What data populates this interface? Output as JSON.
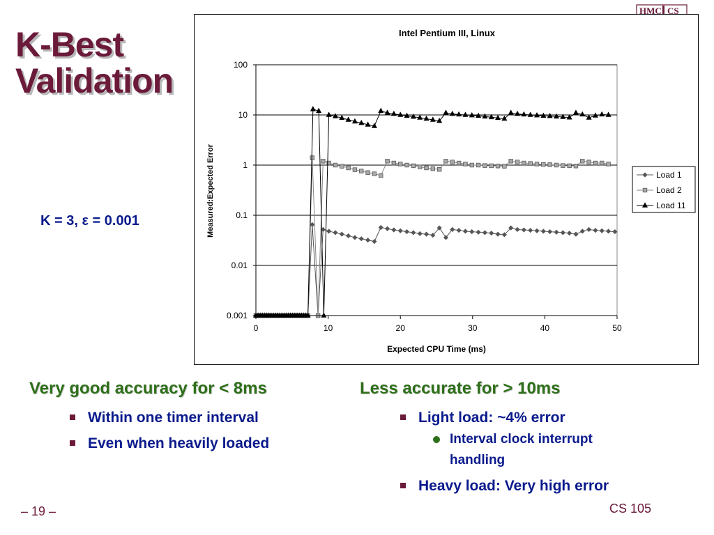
{
  "logo": {
    "text": "HMC CS"
  },
  "title": {
    "line1": "K-Best",
    "line2": "Validation"
  },
  "param": {
    "text": "K = 3, ε = 0.001"
  },
  "chart_data": {
    "type": "line",
    "title": "Intel Pentium III, Linux",
    "xlabel": "Expected CPU Time (ms)",
    "ylabel": "Measured:Expected Error",
    "xlim": [
      0,
      50
    ],
    "ylim": [
      0.001,
      100
    ],
    "yscale": "log",
    "xticks": [
      "0",
      "10",
      "20",
      "30",
      "40",
      "50"
    ],
    "yticks": [
      "0.001",
      "0.01",
      "0.1",
      "1",
      "10",
      "100"
    ],
    "grid": true,
    "legend_position": "right",
    "series": [
      {
        "name": "Load 1",
        "marker": "diamond",
        "x": [
          0,
          0.3,
          0.6,
          0.9,
          1.2,
          1.5,
          1.8,
          2.1,
          2.4,
          2.7,
          3.0,
          3.3,
          3.6,
          3.9,
          4.2,
          4.5,
          4.8,
          5.1,
          5.4,
          5.7,
          6.0,
          6.3,
          6.6,
          6.9,
          7.2,
          7.8,
          8.6,
          9.3,
          10.1,
          11.0,
          11.9,
          12.8,
          13.7,
          14.6,
          15.5,
          16.4,
          17.3,
          18.2,
          19.1,
          20.0,
          20.9,
          21.8,
          22.7,
          23.6,
          24.5,
          25.4,
          26.3,
          27.2,
          28.1,
          29.0,
          29.9,
          30.8,
          31.7,
          32.6,
          33.5,
          34.4,
          35.3,
          36.2,
          37.1,
          38.0,
          38.9,
          39.8,
          40.7,
          41.6,
          42.5,
          43.4,
          44.3,
          45.2,
          46.1,
          47.0,
          47.9,
          48.8,
          49.7
        ],
        "y": [
          0.001,
          0.001,
          0.001,
          0.001,
          0.001,
          0.001,
          0.001,
          0.001,
          0.001,
          0.001,
          0.001,
          0.001,
          0.001,
          0.001,
          0.001,
          0.001,
          0.001,
          0.001,
          0.001,
          0.001,
          0.001,
          0.001,
          0.001,
          0.001,
          0.001,
          0.065,
          0.001,
          0.052,
          0.048,
          0.045,
          0.042,
          0.039,
          0.036,
          0.034,
          0.032,
          0.03,
          0.057,
          0.054,
          0.051,
          0.049,
          0.047,
          0.045,
          0.043,
          0.042,
          0.04,
          0.056,
          0.036,
          0.052,
          0.05,
          0.048,
          0.047,
          0.046,
          0.045,
          0.044,
          0.042,
          0.041,
          0.056,
          0.052,
          0.051,
          0.05,
          0.049,
          0.048,
          0.047,
          0.046,
          0.045,
          0.044,
          0.042,
          0.048,
          0.052,
          0.05,
          0.049,
          0.048,
          0.047
        ]
      },
      {
        "name": "Load 2",
        "marker": "square",
        "x": [
          0,
          0.3,
          0.6,
          0.9,
          1.2,
          1.5,
          1.8,
          2.1,
          2.4,
          2.7,
          3.0,
          3.3,
          3.6,
          3.9,
          4.2,
          4.5,
          4.8,
          5.1,
          5.4,
          5.7,
          6.0,
          6.3,
          6.6,
          6.9,
          7.2,
          7.8,
          8.6,
          9.3,
          10.1,
          11.0,
          11.9,
          12.8,
          13.7,
          14.6,
          15.5,
          16.4,
          17.3,
          18.2,
          19.1,
          20.0,
          20.9,
          21.8,
          22.7,
          23.6,
          24.5,
          25.4,
          26.3,
          27.2,
          28.1,
          29.0,
          29.9,
          30.8,
          31.7,
          32.6,
          33.5,
          34.4,
          35.3,
          36.2,
          37.1,
          38.0,
          38.9,
          39.8,
          40.7,
          41.6,
          42.5,
          43.4,
          44.3,
          45.2,
          46.1,
          47.0,
          47.9,
          48.8
        ],
        "y": [
          0.001,
          0.001,
          0.001,
          0.001,
          0.001,
          0.001,
          0.001,
          0.001,
          0.001,
          0.001,
          0.001,
          0.001,
          0.001,
          0.001,
          0.001,
          0.001,
          0.001,
          0.001,
          0.001,
          0.001,
          0.001,
          0.001,
          0.001,
          0.001,
          0.001,
          1.4,
          0.001,
          1.2,
          1.1,
          1.0,
          0.95,
          0.88,
          0.81,
          0.76,
          0.71,
          0.67,
          0.62,
          1.2,
          1.1,
          1.05,
          1.0,
          0.97,
          0.92,
          0.88,
          0.85,
          0.82,
          1.2,
          1.15,
          1.1,
          1.05,
          1.0,
          1.0,
          0.98,
          0.97,
          0.96,
          0.95,
          1.2,
          1.15,
          1.1,
          1.08,
          1.05,
          1.03,
          1.02,
          1.0,
          0.98,
          0.97,
          0.96,
          1.2,
          1.15,
          1.1,
          1.1,
          1.05
        ]
      },
      {
        "name": "Load 11",
        "marker": "triangle",
        "x": [
          0,
          0.3,
          0.6,
          0.9,
          1.2,
          1.5,
          1.8,
          2.1,
          2.4,
          2.7,
          3.0,
          3.3,
          3.6,
          3.9,
          4.2,
          4.5,
          4.8,
          5.1,
          5.4,
          5.7,
          6.0,
          6.3,
          6.6,
          6.9,
          7.2,
          7.9,
          8.7,
          9.4,
          10.1,
          11.0,
          11.9,
          12.8,
          13.7,
          14.6,
          15.5,
          16.4,
          17.3,
          18.2,
          19.1,
          20.0,
          20.9,
          21.8,
          22.7,
          23.6,
          24.5,
          25.4,
          26.3,
          27.2,
          28.1,
          29.0,
          29.9,
          30.8,
          31.7,
          32.6,
          33.5,
          34.4,
          35.3,
          36.2,
          37.1,
          38.0,
          38.9,
          39.8,
          40.7,
          41.6,
          42.5,
          43.4,
          44.3,
          45.2,
          46.1,
          47.0,
          47.9,
          48.8
        ],
        "y": [
          0.001,
          0.001,
          0.001,
          0.001,
          0.001,
          0.001,
          0.001,
          0.001,
          0.001,
          0.001,
          0.001,
          0.001,
          0.001,
          0.001,
          0.001,
          0.001,
          0.001,
          0.001,
          0.001,
          0.001,
          0.001,
          0.001,
          0.001,
          0.001,
          0.001,
          13,
          12,
          0.001,
          10,
          9.4,
          8.7,
          8.0,
          7.4,
          6.9,
          6.4,
          6.0,
          12,
          11,
          10.5,
          10,
          9.6,
          9.2,
          8.8,
          8.4,
          8.0,
          7.6,
          11,
          10.5,
          10.2,
          10,
          9.8,
          9.6,
          9.3,
          9.0,
          8.7,
          8.4,
          11,
          10.5,
          10.2,
          10,
          9.8,
          9.6,
          9.5,
          9.3,
          9.1,
          8.9,
          11,
          10.2,
          8.8,
          9.7,
          10.2,
          10
        ]
      }
    ]
  },
  "left_col": {
    "heading": "Very good accuracy for < 8ms",
    "bullets": [
      "Within one timer interval",
      "Even when heavily loaded"
    ]
  },
  "right_col": {
    "heading": "Less accurate for > 10ms",
    "bullet1": "Light load: ~4% error",
    "sub1": "Interval clock interrupt handling",
    "bullet2": "Heavy load: Very high error"
  },
  "footer": {
    "left": "– 19 –",
    "right": "CS 105"
  }
}
